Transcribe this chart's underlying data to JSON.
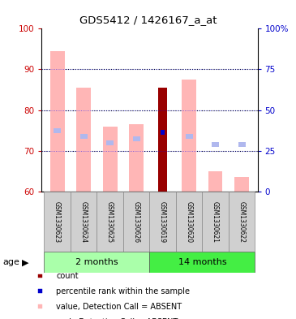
{
  "title": "GDS5412 / 1426167_a_at",
  "samples": [
    "GSM1330623",
    "GSM1330624",
    "GSM1330625",
    "GSM1330626",
    "GSM1330619",
    "GSM1330620",
    "GSM1330621",
    "GSM1330622"
  ],
  "value_absent": [
    94.5,
    85.5,
    76.0,
    76.5,
    null,
    87.5,
    65.0,
    63.5
  ],
  "rank_absent_left": [
    75.0,
    73.5,
    72.0,
    73.0,
    null,
    73.5,
    71.5,
    71.5
  ],
  "count_value": [
    null,
    null,
    null,
    null,
    85.5,
    null,
    null,
    null
  ],
  "percentile_rank_left": [
    null,
    null,
    null,
    null,
    74.5,
    null,
    null,
    null
  ],
  "ylim": [
    60,
    100
  ],
  "yticks": [
    60,
    70,
    80,
    90,
    100
  ],
  "y2ticks": [
    0,
    25,
    50,
    75,
    100
  ],
  "color_value_absent": "#ffb6b6",
  "color_rank_absent": "#b0b8ee",
  "color_count": "#990000",
  "color_percentile": "#0000cc",
  "tick_color_left": "#cc0000",
  "tick_color_right": "#0000cc",
  "group_2mo_color": "#aaffaa",
  "group_14mo_color": "#44ee44",
  "legend_items": [
    {
      "label": "count",
      "color": "#990000"
    },
    {
      "label": "percentile rank within the sample",
      "color": "#0000cc"
    },
    {
      "label": "value, Detection Call = ABSENT",
      "color": "#ffb6b6"
    },
    {
      "label": "rank, Detection Call = ABSENT",
      "color": "#b0b8ee"
    }
  ]
}
